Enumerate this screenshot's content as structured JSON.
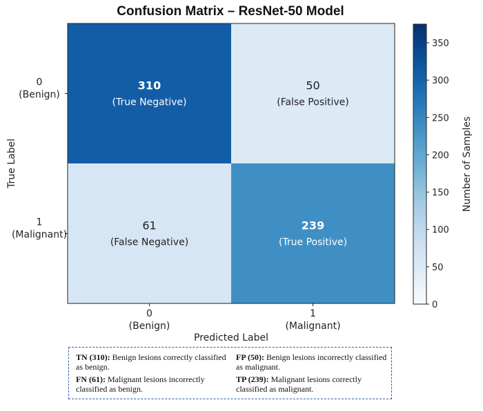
{
  "chart_data": {
    "type": "heatmap",
    "title": "Confusion Matrix – ResNet-50 Model",
    "xlabel": "Predicted Label",
    "ylabel": "True Label",
    "x_categories": [
      {
        "value": "0",
        "name": "(Benign)"
      },
      {
        "value": "1",
        "name": "(Malignant)"
      }
    ],
    "y_categories": [
      {
        "value": "0",
        "name": "(Benign)"
      },
      {
        "value": "1",
        "name": "(Malignant)"
      }
    ],
    "cells": [
      {
        "row": 0,
        "col": 0,
        "value": 310,
        "label": "310",
        "caption": "(True Negative)"
      },
      {
        "row": 0,
        "col": 1,
        "value": 50,
        "label": "50",
        "caption": "(False Positive)"
      },
      {
        "row": 1,
        "col": 0,
        "value": 61,
        "label": "61",
        "caption": "(False Negative)"
      },
      {
        "row": 1,
        "col": 1,
        "value": 239,
        "label": "239",
        "caption": "(True Positive)"
      }
    ],
    "colorbar": {
      "label": "Number of Samples",
      "min": 0,
      "max": 375,
      "ticks": [
        0,
        50,
        100,
        150,
        200,
        250,
        300,
        350
      ],
      "colormap": "Blues",
      "low_color": "#f7fbff",
      "high_color": "#08306b"
    }
  },
  "legend": {
    "tn": {
      "key": "TN (310):",
      "text": "Benign lesions correctly classified as benign."
    },
    "fp": {
      "key": "FP (50):",
      "text": "Benign lesions incorrectly classified as malignant."
    },
    "fn": {
      "key": "FN (61):",
      "text": "Malignant lesions incorrectly classified as benign."
    },
    "tp": {
      "key": "TP (239):",
      "text": "Malignant lesions correctly classified as malignant."
    }
  }
}
